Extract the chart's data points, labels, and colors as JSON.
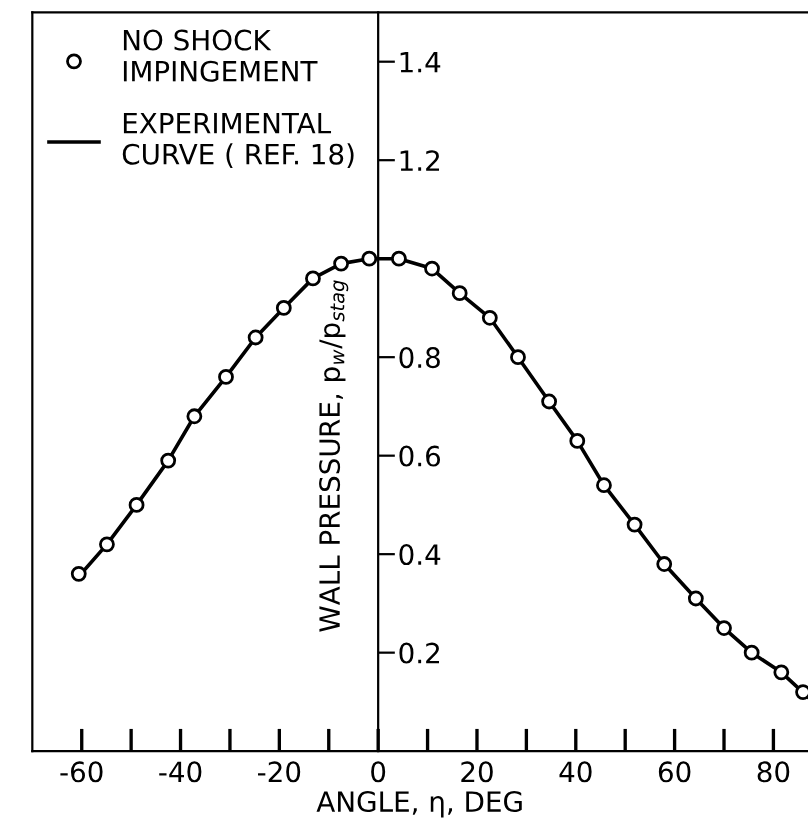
{
  "chart_data": {
    "type": "scatter",
    "xlabel": "ANGLE, η, DEG",
    "ylabel": "WALL PRESSURE, p$_{w}$/p$_{stag}$",
    "xlim": [
      -70,
      87
    ],
    "ylim": [
      0,
      1.5
    ],
    "xticks": [
      -60,
      {
        "value": -50,
        "label": null
      },
      -40,
      {
        "value": -30,
        "label": null
      },
      -20,
      {
        "value": -10,
        "label": null
      },
      0,
      {
        "value": 10,
        "label": null
      },
      20,
      {
        "value": 30,
        "label": null
      },
      40,
      {
        "value": 50,
        "label": null
      },
      60,
      {
        "value": 70,
        "label": null
      },
      80
    ],
    "yticks": [
      0.2,
      0.4,
      0.6,
      0.8,
      1.2,
      1.4
    ],
    "legend": "top left",
    "grid": false,
    "series": [
      {
        "name": "NO SHOCK\nIMPINGEMENT",
        "marker": "circle",
        "color": "#000000",
        "x": [
          -60.6,
          -54.9,
          -48.9,
          -42.5,
          -37.2,
          -30.8,
          -24.8,
          -19.1,
          -13.2,
          -7.5,
          -1.8,
          4.2,
          10.9,
          16.5,
          22.6,
          28.3,
          34.6,
          40.3,
          45.7,
          51.9,
          57.9,
          64.3,
          70.0,
          75.6,
          81.6,
          86.0
        ],
        "values": [
          0.36,
          0.42,
          0.5,
          0.59,
          0.68,
          0.76,
          0.84,
          0.9,
          0.96,
          0.99,
          1.0,
          1.0,
          0.98,
          0.93,
          0.88,
          0.8,
          0.71,
          0.63,
          0.54,
          0.46,
          0.38,
          0.31,
          0.25,
          0.2,
          0.16,
          0.12
        ]
      },
      {
        "name": "EXPERIMENTAL\nCURVE ( REF. 18)",
        "type": "line",
        "marker": "none",
        "line_style": "solid",
        "color": "#000000",
        "x": [
          -61,
          -54.9,
          -48.9,
          -42.5,
          -37.2,
          -30.8,
          -24.8,
          -19.1,
          -13.2,
          -7.5,
          -1.8,
          4.2,
          10.9,
          16.5,
          22.6,
          28.3,
          34.6,
          40.3,
          45.7,
          51.9,
          57.9,
          64.3,
          70.0,
          75.6,
          81.6,
          87
        ],
        "values": [
          0.35,
          0.42,
          0.5,
          0.59,
          0.68,
          0.76,
          0.84,
          0.9,
          0.96,
          0.99,
          1.0,
          1.0,
          0.98,
          0.93,
          0.88,
          0.8,
          0.71,
          0.63,
          0.54,
          0.46,
          0.38,
          0.31,
          0.25,
          0.2,
          0.16,
          0.11
        ]
      }
    ]
  }
}
